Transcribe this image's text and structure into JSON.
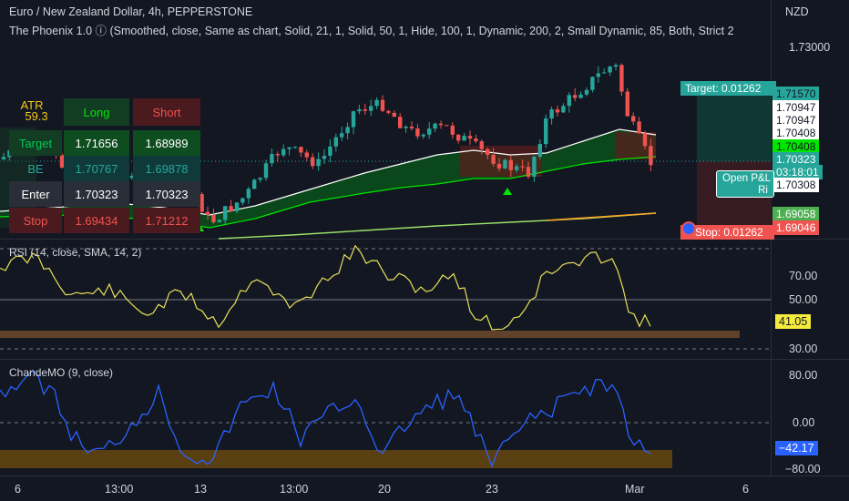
{
  "header": {
    "symbol_line": "Euro / New Zealand Dollar, 4h, PEPPERSTONE",
    "indicator_line": "The Phoenix 1.0 ⓘ (Smoothed, close, Same as chart, Solid, 21, 1, Solid, 50, 1, Hide, 100, 1, Dynamic, 200, 2, Small Dynamic, 85, Both, Strict 2"
  },
  "price_axis": {
    "currency": "NZD",
    "ticks": [
      "1.73000"
    ],
    "tags": [
      {
        "text": "1.71570",
        "bg": "#26a69a",
        "fg": "#131722"
      },
      {
        "text": "1.70947",
        "bg": "#ffffff",
        "fg": "#131722"
      },
      {
        "text": "1.70947",
        "bg": "#ffffff",
        "fg": "#131722"
      },
      {
        "text": "1.70408",
        "bg": "#ffffff",
        "fg": "#131722"
      },
      {
        "text": "1.70408",
        "bg": "#00e600",
        "fg": "#131722"
      },
      {
        "text": "1.70323",
        "bg": "#26a69a",
        "fg": "#ffffff"
      },
      {
        "text": "03:18:01",
        "bg": "#26a69a",
        "fg": "#ffffff"
      },
      {
        "text": "1.70308",
        "bg": "#ffffff",
        "fg": "#131722"
      },
      {
        "text": "1.69058",
        "bg": "#4caf50",
        "fg": "#ffffff"
      },
      {
        "text": "1.69046",
        "bg": "#ef5350",
        "fg": "#ffffff"
      }
    ]
  },
  "position_tool": {
    "target_label": "Target: 0.01262",
    "stop_label": "Stop: 0.01262",
    "open_pnl_label": "Open P&L",
    "risk_label": "Ri"
  },
  "signal_table": {
    "atr_label": "ATR",
    "atr_value": "59.3",
    "long_label": "Long",
    "short_label": "Short",
    "rows": [
      {
        "label": "Target",
        "long": "1.71656",
        "short": "1.68989"
      },
      {
        "label": "BE",
        "long": "1.70767",
        "short": "1.69878"
      },
      {
        "label": "Enter",
        "long": "1.70323",
        "short": "1.70323"
      },
      {
        "label": "Stop",
        "long": "1.69434",
        "short": "1.71212"
      }
    ]
  },
  "rsi_pane": {
    "title": "RSI (14, close, SMA, 14, 2)",
    "ticks": [
      "70.00",
      "50.00",
      "30.00"
    ],
    "current": "41.05"
  },
  "cmo_pane": {
    "title": "ChandeMO (9, close)",
    "ticks": [
      "80.00",
      "0.00",
      "−80.00"
    ],
    "current": "−42.17"
  },
  "time_axis": {
    "labels": [
      "6",
      "13:00",
      "13",
      "13:00",
      "20",
      "23",
      "Mar",
      "6"
    ]
  },
  "colors": {
    "background": "#131722",
    "bull": "#26a69a",
    "bear": "#ef5350",
    "rsi_line": "#e8e05a",
    "cmo_line": "#2962ff",
    "ma_200": "#ffa726"
  }
}
